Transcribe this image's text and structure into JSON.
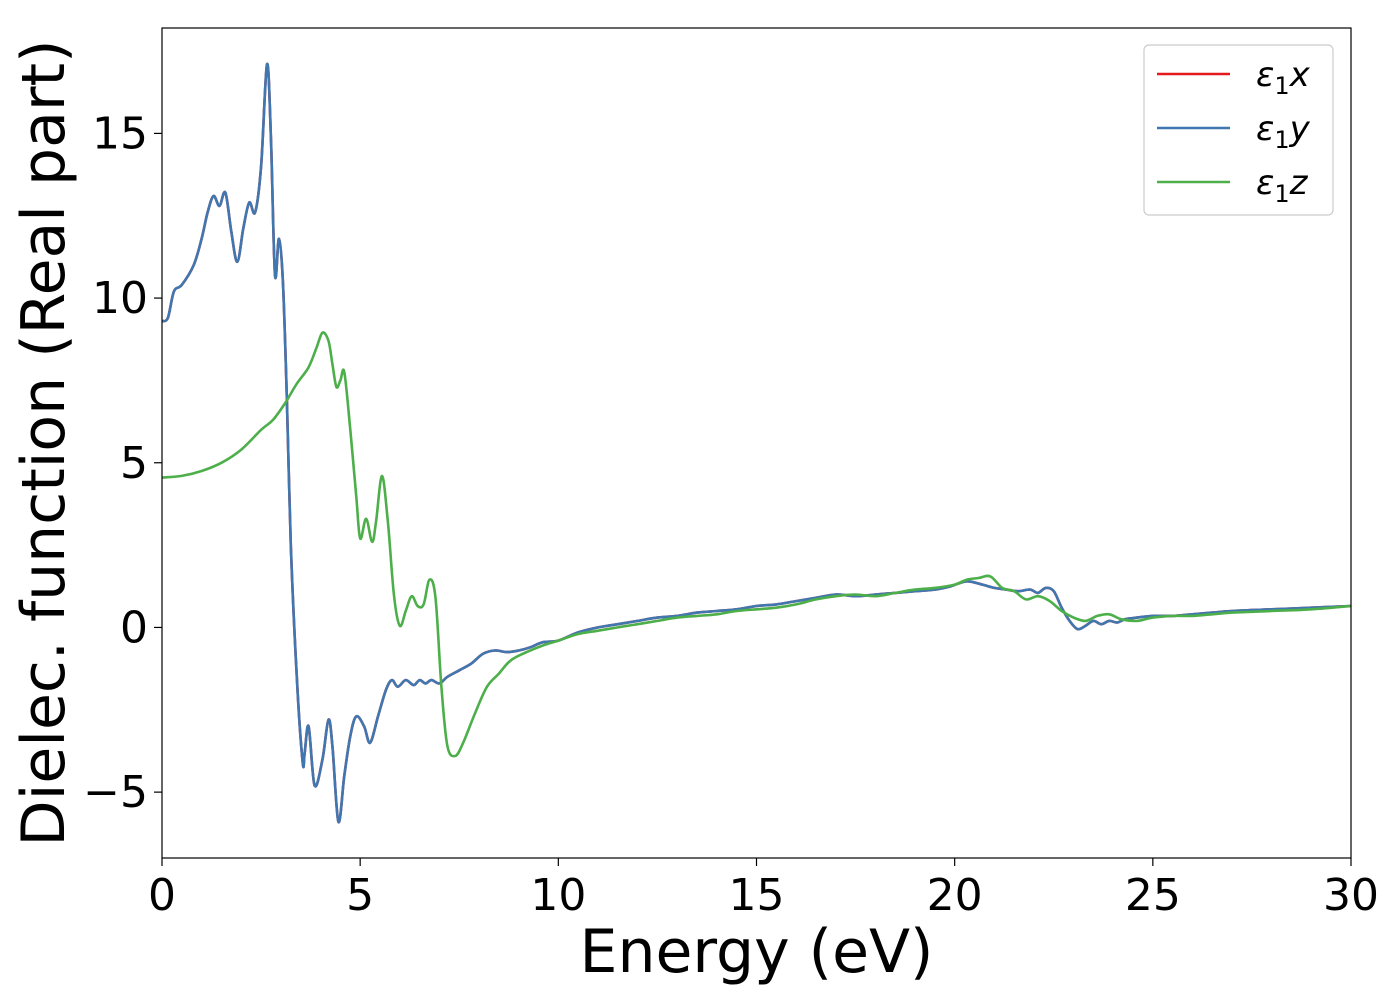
{
  "chart_data": {
    "type": "line",
    "title": "",
    "xlabel": "Energy (eV)",
    "ylabel": "Dielec. function (Real part)",
    "xlim": [
      0,
      30
    ],
    "ylim": [
      -7,
      18.2
    ],
    "xticks": [
      0,
      5,
      10,
      15,
      20,
      25,
      30
    ],
    "xtick_labels": [
      "0",
      "5",
      "10",
      "15",
      "20",
      "25",
      "30"
    ],
    "yticks": [
      -5,
      0,
      5,
      10,
      15
    ],
    "ytick_labels": [
      "−5",
      "0",
      "5",
      "10",
      "15"
    ],
    "grid": false,
    "legend_position": "top-right",
    "series": [
      {
        "name": "ε1x",
        "legend_base": "ε",
        "legend_sub": "1",
        "legend_var": "x",
        "color": "#e41a1c",
        "x": [
          0,
          0.15,
          0.3,
          0.5,
          0.8,
          1.0,
          1.15,
          1.3,
          1.45,
          1.6,
          1.75,
          1.9,
          2.05,
          2.2,
          2.35,
          2.5,
          2.65,
          2.75,
          2.85,
          2.95,
          3.05,
          3.15,
          3.25,
          3.4,
          3.55,
          3.6,
          3.7,
          3.85,
          4.05,
          4.2,
          4.3,
          4.45,
          4.6,
          4.75,
          4.9,
          5.1,
          5.25,
          5.45,
          5.65,
          5.8,
          5.95,
          6.15,
          6.35,
          6.5,
          6.65,
          6.8,
          7.0,
          7.2,
          7.5,
          7.8,
          8.1,
          8.4,
          8.7,
          9.0,
          9.3,
          9.6,
          10.0,
          10.5,
          11.0,
          11.5,
          12.0,
          12.5,
          13.0,
          13.5,
          14.0,
          14.5,
          15.0,
          15.5,
          16.0,
          16.5,
          17.0,
          17.5,
          18.0,
          18.5,
          19.0,
          19.5,
          19.9,
          20.3,
          20.7,
          21.0,
          21.3,
          21.6,
          21.9,
          22.1,
          22.3,
          22.5,
          22.7,
          22.9,
          23.1,
          23.3,
          23.5,
          23.7,
          23.9,
          24.1,
          24.3,
          24.6,
          25.0,
          25.5,
          26.0,
          26.5,
          27.0,
          28.0,
          29.0,
          30.0
        ],
        "values": [
          9.3,
          9.4,
          10.2,
          10.4,
          11.0,
          11.8,
          12.6,
          13.1,
          12.8,
          13.2,
          12.0,
          11.1,
          12.1,
          12.9,
          12.6,
          14.0,
          17.1,
          14.8,
          10.7,
          11.8,
          10.5,
          7.0,
          2.5,
          -1.5,
          -4.1,
          -3.8,
          -3.0,
          -4.8,
          -4.0,
          -2.8,
          -3.6,
          -5.9,
          -4.5,
          -3.3,
          -2.7,
          -3.0,
          -3.5,
          -2.7,
          -1.9,
          -1.6,
          -1.8,
          -1.6,
          -1.75,
          -1.6,
          -1.7,
          -1.6,
          -1.7,
          -1.5,
          -1.3,
          -1.1,
          -0.8,
          -0.7,
          -0.75,
          -0.7,
          -0.6,
          -0.45,
          -0.4,
          -0.15,
          0.0,
          0.1,
          0.2,
          0.3,
          0.35,
          0.45,
          0.5,
          0.55,
          0.65,
          0.7,
          0.8,
          0.9,
          1.0,
          0.95,
          1.0,
          1.05,
          1.1,
          1.15,
          1.25,
          1.4,
          1.3,
          1.2,
          1.15,
          1.1,
          1.15,
          1.05,
          1.2,
          1.1,
          0.6,
          0.2,
          -0.05,
          0.05,
          0.2,
          0.1,
          0.2,
          0.15,
          0.25,
          0.3,
          0.35,
          0.35,
          0.4,
          0.45,
          0.5,
          0.55,
          0.6,
          0.65
        ]
      },
      {
        "name": "ε1y",
        "legend_base": "ε",
        "legend_sub": "1",
        "legend_var": "y",
        "color": "#3f77b0",
        "x": [
          0,
          0.15,
          0.3,
          0.5,
          0.8,
          1.0,
          1.15,
          1.3,
          1.45,
          1.6,
          1.75,
          1.9,
          2.05,
          2.2,
          2.35,
          2.5,
          2.65,
          2.75,
          2.85,
          2.95,
          3.05,
          3.15,
          3.25,
          3.4,
          3.55,
          3.6,
          3.7,
          3.85,
          4.05,
          4.2,
          4.3,
          4.45,
          4.6,
          4.75,
          4.9,
          5.1,
          5.25,
          5.45,
          5.65,
          5.8,
          5.95,
          6.15,
          6.35,
          6.5,
          6.65,
          6.8,
          7.0,
          7.2,
          7.5,
          7.8,
          8.1,
          8.4,
          8.7,
          9.0,
          9.3,
          9.6,
          10.0,
          10.5,
          11.0,
          11.5,
          12.0,
          12.5,
          13.0,
          13.5,
          14.0,
          14.5,
          15.0,
          15.5,
          16.0,
          16.5,
          17.0,
          17.5,
          18.0,
          18.5,
          19.0,
          19.5,
          19.9,
          20.3,
          20.7,
          21.0,
          21.3,
          21.6,
          21.9,
          22.1,
          22.3,
          22.5,
          22.7,
          22.9,
          23.1,
          23.3,
          23.5,
          23.7,
          23.9,
          24.1,
          24.3,
          24.6,
          25.0,
          25.5,
          26.0,
          26.5,
          27.0,
          28.0,
          29.0,
          30.0
        ],
        "values": [
          9.3,
          9.4,
          10.2,
          10.4,
          11.0,
          11.8,
          12.6,
          13.1,
          12.8,
          13.2,
          12.0,
          11.1,
          12.1,
          12.9,
          12.6,
          14.0,
          17.1,
          14.8,
          10.7,
          11.8,
          10.5,
          7.0,
          2.5,
          -1.5,
          -4.1,
          -3.8,
          -3.0,
          -4.8,
          -4.0,
          -2.8,
          -3.6,
          -5.9,
          -4.5,
          -3.3,
          -2.7,
          -3.0,
          -3.5,
          -2.7,
          -1.9,
          -1.6,
          -1.8,
          -1.6,
          -1.75,
          -1.6,
          -1.7,
          -1.6,
          -1.7,
          -1.5,
          -1.3,
          -1.1,
          -0.8,
          -0.7,
          -0.75,
          -0.7,
          -0.6,
          -0.45,
          -0.4,
          -0.15,
          0.0,
          0.1,
          0.2,
          0.3,
          0.35,
          0.45,
          0.5,
          0.55,
          0.65,
          0.7,
          0.8,
          0.9,
          1.0,
          0.95,
          1.0,
          1.05,
          1.1,
          1.15,
          1.25,
          1.4,
          1.3,
          1.2,
          1.15,
          1.1,
          1.15,
          1.05,
          1.2,
          1.1,
          0.6,
          0.2,
          -0.05,
          0.05,
          0.2,
          0.1,
          0.2,
          0.15,
          0.25,
          0.3,
          0.35,
          0.35,
          0.4,
          0.45,
          0.5,
          0.55,
          0.6,
          0.65
        ]
      },
      {
        "name": "ε1z",
        "legend_base": "ε",
        "legend_sub": "1",
        "legend_var": "z",
        "color": "#4daf4a",
        "x": [
          0,
          0.5,
          1.0,
          1.5,
          2.0,
          2.5,
          2.8,
          3.1,
          3.4,
          3.7,
          3.9,
          4.05,
          4.2,
          4.3,
          4.4,
          4.5,
          4.6,
          4.75,
          4.9,
          5.0,
          5.15,
          5.3,
          5.4,
          5.55,
          5.7,
          5.85,
          6.0,
          6.15,
          6.3,
          6.45,
          6.6,
          6.75,
          6.9,
          7.05,
          7.2,
          7.4,
          7.6,
          7.9,
          8.2,
          8.5,
          8.8,
          9.2,
          9.6,
          10.0,
          10.5,
          11.0,
          11.5,
          12.0,
          12.5,
          13.0,
          13.5,
          14.0,
          14.5,
          15.0,
          15.5,
          16.0,
          16.5,
          17.0,
          17.5,
          18.0,
          18.5,
          19.0,
          19.5,
          20.0,
          20.3,
          20.6,
          20.9,
          21.2,
          21.5,
          21.8,
          22.1,
          22.4,
          22.7,
          23.0,
          23.3,
          23.6,
          23.9,
          24.2,
          24.6,
          25.0,
          25.5,
          26.0,
          26.5,
          27.0,
          28.0,
          29.0,
          30.0
        ],
        "values": [
          4.55,
          4.6,
          4.75,
          5.0,
          5.4,
          6.0,
          6.3,
          6.8,
          7.4,
          7.9,
          8.5,
          8.95,
          8.7,
          8.0,
          7.3,
          7.5,
          7.75,
          6.0,
          4.0,
          2.7,
          3.3,
          2.6,
          3.2,
          4.6,
          3.2,
          1.0,
          0.05,
          0.5,
          0.95,
          0.65,
          0.7,
          1.45,
          0.9,
          -1.8,
          -3.6,
          -3.9,
          -3.5,
          -2.6,
          -1.8,
          -1.4,
          -1.0,
          -0.75,
          -0.55,
          -0.4,
          -0.2,
          -0.1,
          0.0,
          0.1,
          0.2,
          0.3,
          0.35,
          0.4,
          0.5,
          0.55,
          0.6,
          0.7,
          0.85,
          0.95,
          1.0,
          0.95,
          1.05,
          1.15,
          1.2,
          1.3,
          1.45,
          1.5,
          1.55,
          1.2,
          1.1,
          0.85,
          0.95,
          0.8,
          0.5,
          0.3,
          0.2,
          0.35,
          0.4,
          0.25,
          0.2,
          0.3,
          0.35,
          0.35,
          0.4,
          0.45,
          0.5,
          0.55,
          0.65
        ]
      }
    ]
  }
}
